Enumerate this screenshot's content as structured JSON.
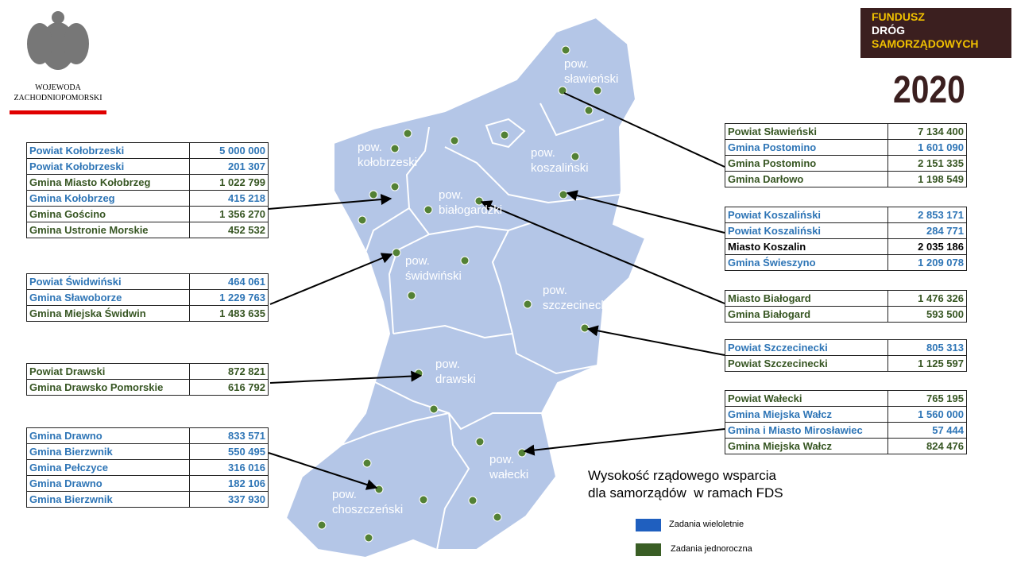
{
  "header": {
    "emblem_lines": [
      "WOJEWODA",
      "ZACHODNIOPOMORSKI"
    ],
    "fund_lines": [
      "FUNDUSZ",
      "DRÓG",
      "SAMORZĄDOWYCH"
    ],
    "year": "2020"
  },
  "tables": [
    {
      "rows": [
        {
          "name": "Powiat Kołobrzeski",
          "amount": "5 000 000",
          "color": "#2e75b6"
        },
        {
          "name": "Powiat Kołobrzeski",
          "amount": "201 307",
          "color": "#2e75b6"
        },
        {
          "name": "Gmina Miasto Kołobrzeg",
          "amount": "1 022 799",
          "color": "#375623"
        },
        {
          "name": "Gmina Kołobrzeg",
          "amount": "415 218",
          "color": "#2e75b6"
        },
        {
          "name": "Gmina Gościno",
          "amount": "1 356 270",
          "color": "#375623"
        },
        {
          "name": "Gmina Ustronie Morskie",
          "amount": "452 532",
          "color": "#375623"
        }
      ]
    },
    {
      "rows": [
        {
          "name": "Powiat Świdwiński",
          "amount": "464 061",
          "color": "#2e75b6"
        },
        {
          "name": "Gmina Sławoborze",
          "amount": "1 229 763",
          "color": "#2e75b6"
        },
        {
          "name": "Gmina Miejska Świdwin",
          "amount": "1 483 635",
          "color": "#375623"
        }
      ]
    },
    {
      "rows": [
        {
          "name": "Powiat Drawski",
          "amount": "872 821",
          "color": "#375623"
        },
        {
          "name": "Gmina Drawsko Pomorskie",
          "amount": "616 792",
          "color": "#375623"
        }
      ]
    },
    {
      "rows": [
        {
          "name": "Gmina Drawno",
          "amount": "833 571",
          "color": "#2e75b6"
        },
        {
          "name": "Gmina Bierzwnik",
          "amount": "550 495",
          "color": "#2e75b6"
        },
        {
          "name": "Gmina Pełczyce",
          "amount": "316 016",
          "color": "#2e75b6"
        },
        {
          "name": "Gmina Drawno",
          "amount": "182 106",
          "color": "#2e75b6"
        },
        {
          "name": "Gmina Bierzwnik",
          "amount": "337 930",
          "color": "#2e75b6"
        }
      ]
    },
    {
      "rows": [
        {
          "name": "Powiat Sławieński",
          "amount": "7 134 400",
          "color": "#375623"
        },
        {
          "name": "Gmina Postomino",
          "amount": "1 601 090",
          "color": "#2e75b6"
        },
        {
          "name": "Gmina Postomino",
          "amount": "2 151 335",
          "color": "#375623"
        },
        {
          "name": "Gmina Darłowo",
          "amount": "1 198 549",
          "color": "#375623"
        }
      ]
    },
    {
      "rows": [
        {
          "name": "Powiat Koszaliński",
          "amount": "2 853 171",
          "color": "#2e75b6"
        },
        {
          "name": "Powiat Koszaliński",
          "amount": "284 771",
          "color": "#2e75b6"
        },
        {
          "name": "Miasto Koszalin",
          "amount": "2 035 186",
          "color": "#000000"
        },
        {
          "name": "Gmina Świeszyno",
          "amount": "1 209 078",
          "color": "#2e75b6"
        }
      ]
    },
    {
      "rows": [
        {
          "name": "Miasto Białogard",
          "amount": "1 476 326",
          "color": "#375623"
        },
        {
          "name": "Gmina Białogard",
          "amount": "593 500",
          "color": "#375623"
        }
      ]
    },
    {
      "rows": [
        {
          "name": "Powiat Szczecinecki",
          "amount": "805 313",
          "color": "#2e75b6"
        },
        {
          "name": "Powiat Szczecinecki",
          "amount": "1 125 597",
          "color": "#375623"
        }
      ]
    },
    {
      "rows": [
        {
          "name": "Powiat Wałecki",
          "amount": "765 195",
          "color": "#375623"
        },
        {
          "name": "Gmina Miejska Wałcz",
          "amount": "1 560 000",
          "color": "#2e75b6"
        },
        {
          "name": "Gmina i Miasto Mirosławiec",
          "amount": "57 444",
          "color": "#2e75b6"
        },
        {
          "name": "Gmina Miejska Wałcz",
          "amount": "824 476",
          "color": "#375623"
        }
      ]
    }
  ],
  "map": {
    "labels": [
      [
        "pow.",
        "sławieński"
      ],
      [
        "pow.",
        "kołobrzeski"
      ],
      [
        "pow.",
        "koszaliński"
      ],
      [
        "pow.",
        "białogardzki"
      ],
      [
        "pow.",
        "świdwiński"
      ],
      [
        "pow.",
        "szczecinecki"
      ],
      [
        "pow.",
        "drawski"
      ],
      [
        "pow.",
        "wałecki"
      ],
      [
        "pow.",
        "choszczeński"
      ]
    ]
  },
  "caption": [
    "Wysokość rządowego wsparcia",
    "dla samorządów  w ramach FDS"
  ],
  "legend": [
    {
      "label": "Zadania wieloletnie",
      "color": "#1f5fbf"
    },
    {
      "label": "Zadania jednoroczna",
      "color": "#3a5e25"
    }
  ]
}
